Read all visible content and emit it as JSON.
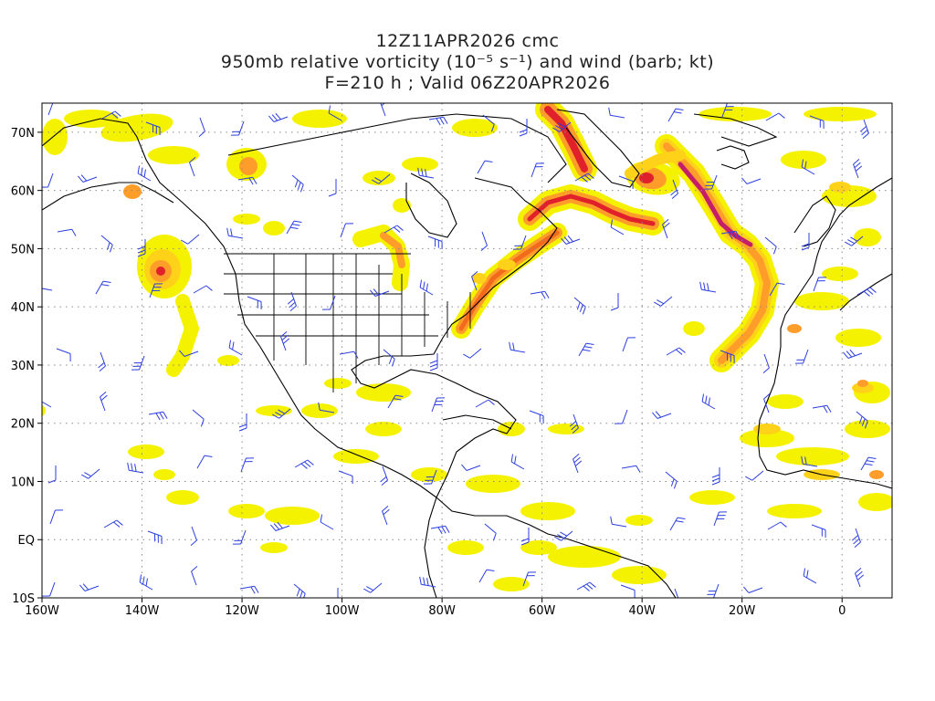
{
  "title": {
    "line1": "12Z11APR2026 cmc",
    "line2": "950mb relative vorticity (10⁻⁵ s⁻¹) and wind (barb; kt)",
    "line3": "F=210 h ; Valid 06Z20APR2026"
  },
  "axes": {
    "lat_labels": [
      "70N",
      "60N",
      "50N",
      "40N",
      "30N",
      "20N",
      "10N",
      "EQ",
      "10S"
    ],
    "lon_labels": [
      "160W",
      "140W",
      "120W",
      "100W",
      "80W",
      "60W",
      "40W",
      "20W",
      "0"
    ],
    "lat_range": [
      -10,
      75
    ],
    "lon_range": [
      -160,
      10
    ],
    "grid": "dotted"
  },
  "colors": {
    "yellow": "#f5f200",
    "gold": "#ffd21a",
    "orange": "#ff9d2b",
    "dark_orange": "#f26b1d",
    "red": "#e0202a",
    "magenta": "#c41e6a",
    "barb": "#2b3ee0",
    "coast": "#000000"
  }
}
